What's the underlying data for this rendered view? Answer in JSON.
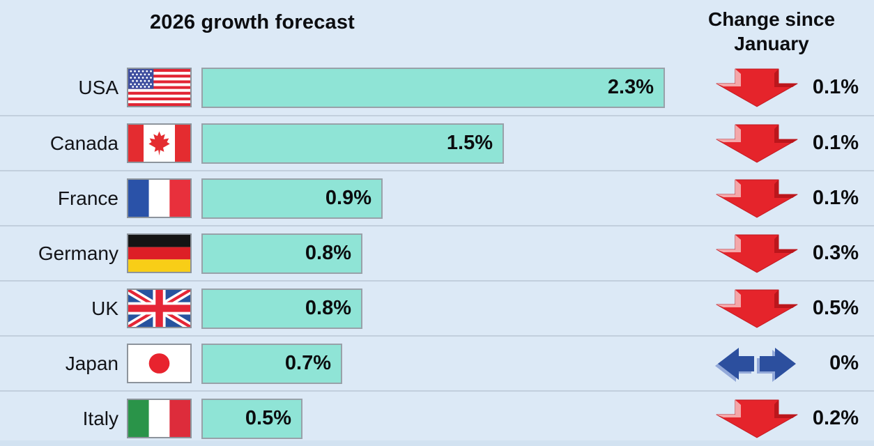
{
  "title": "2026 growth forecast",
  "change_header": "Change since January",
  "rows": [
    {
      "country": "USA",
      "value": "2.3%",
      "value_num": 2.3,
      "change": "0.1%",
      "direction": "down",
      "flag": "usa-flag"
    },
    {
      "country": "Canada",
      "value": "1.5%",
      "value_num": 1.5,
      "change": "0.1%",
      "direction": "down",
      "flag": "canada-flag"
    },
    {
      "country": "France",
      "value": "0.9%",
      "value_num": 0.9,
      "change": "0.1%",
      "direction": "down",
      "flag": "france-flag"
    },
    {
      "country": "Germany",
      "value": "0.8%",
      "value_num": 0.8,
      "change": "0.3%",
      "direction": "down",
      "flag": "germany-flag"
    },
    {
      "country": "UK",
      "value": "0.8%",
      "value_num": 0.8,
      "change": "0.5%",
      "direction": "down",
      "flag": "uk-flag"
    },
    {
      "country": "Japan",
      "value": "0.7%",
      "value_num": 0.7,
      "change": "0%",
      "direction": "flat",
      "flag": "japan-flag"
    },
    {
      "country": "Italy",
      "value": "0.5%",
      "value_num": 0.5,
      "change": "0.2%",
      "direction": "down",
      "flag": "italy-flag"
    }
  ],
  "icons": {
    "down": "red-down-arrow",
    "flat": "blue-left-right-arrow"
  },
  "colors": {
    "background": "#dce9f6",
    "bar_fill": "#8fe4d6",
    "bar_border": "#98a1a9",
    "divider": "#c2cfdd",
    "arrow_red": "#e5242b",
    "arrow_red_highlight": "#f4a7a9",
    "arrow_red_shade": "#bb161c",
    "arrow_blue": "#2c4f9e",
    "arrow_blue_shadow": "#93a9d9",
    "text": "#0b0c0e"
  },
  "chart_data": {
    "type": "bar",
    "orientation": "horizontal",
    "title": "2026 growth forecast",
    "categories": [
      "USA",
      "Canada",
      "France",
      "Germany",
      "UK",
      "Japan",
      "Italy"
    ],
    "series": [
      {
        "name": "2026 growth forecast (%)",
        "values": [
          2.3,
          1.5,
          0.9,
          0.8,
          0.8,
          0.7,
          0.5
        ]
      },
      {
        "name": "Change since January (percentage points)",
        "values": [
          -0.1,
          -0.1,
          -0.1,
          -0.3,
          -0.5,
          0,
          -0.2
        ]
      }
    ],
    "value_labels": [
      "2.3%",
      "1.5%",
      "0.9%",
      "0.8%",
      "0.8%",
      "0.7%",
      "0.5%"
    ],
    "change_labels": [
      "0.1%",
      "0.1%",
      "0.1%",
      "0.3%",
      "0.5%",
      "0%",
      "0.2%"
    ],
    "change_directions": [
      "down",
      "down",
      "down",
      "down",
      "down",
      "no-change",
      "down"
    ],
    "xlim": [
      0,
      2.4
    ],
    "grid": false,
    "legend": false
  }
}
